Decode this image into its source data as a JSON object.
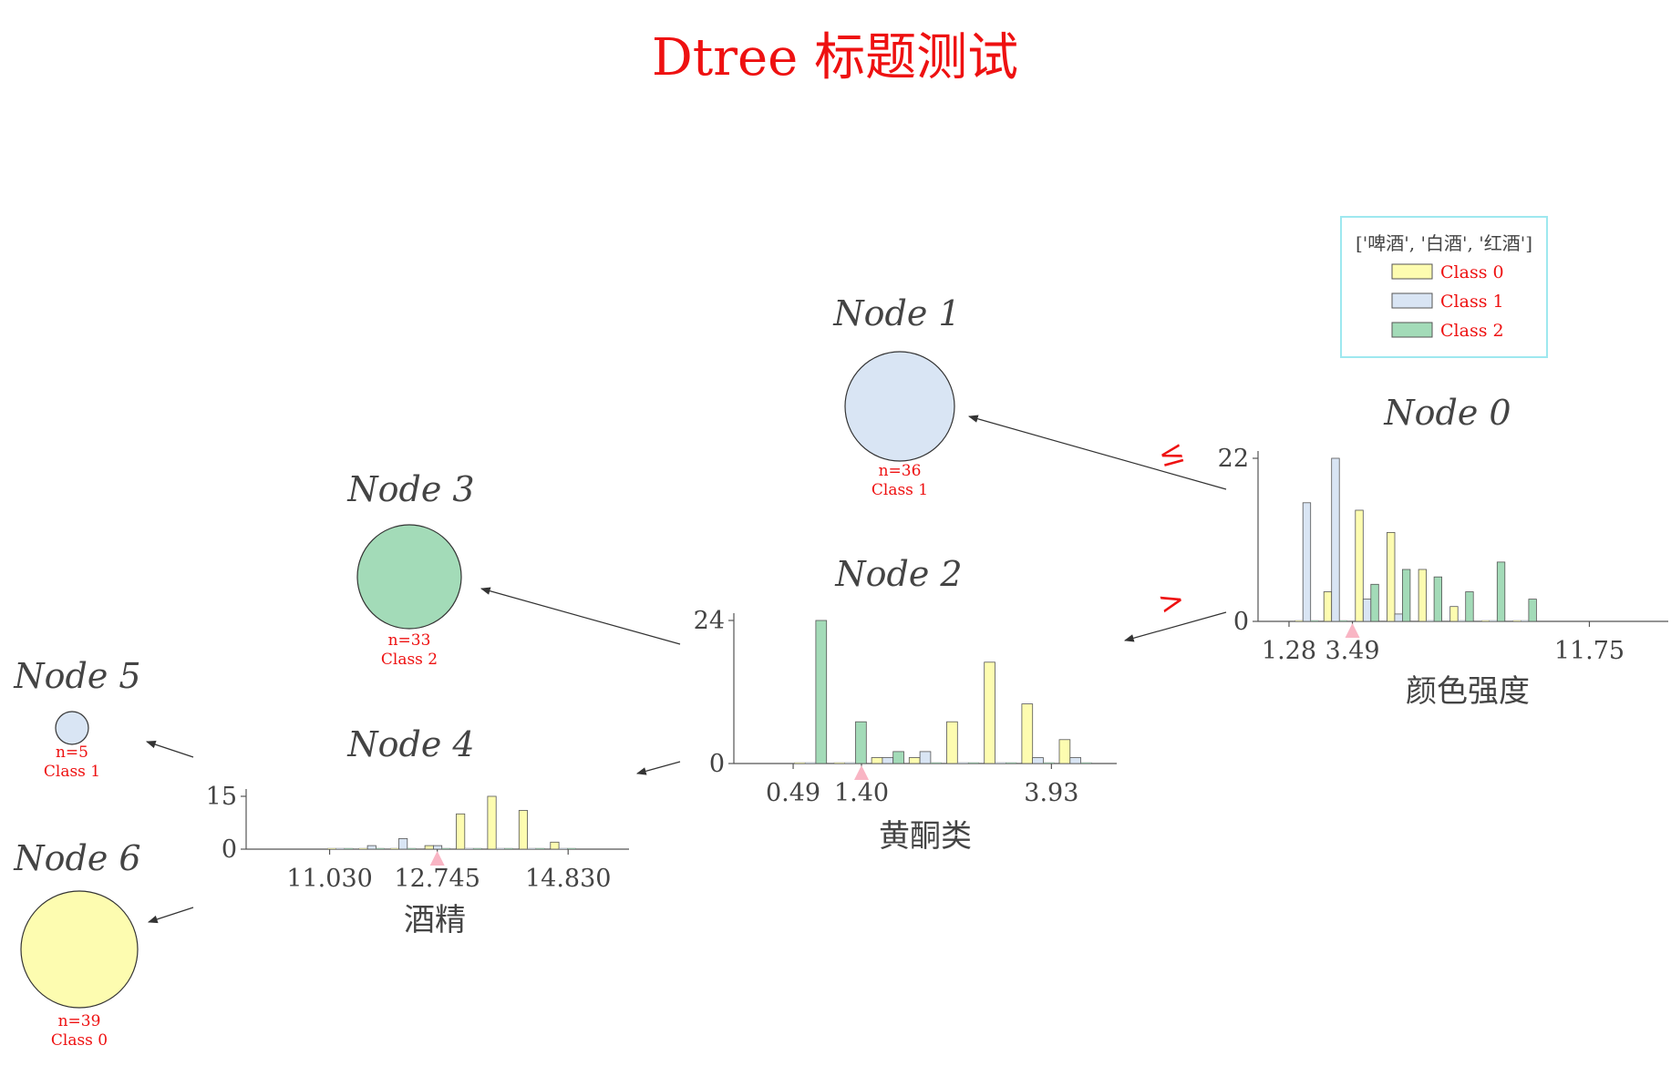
{
  "title": "Dtree 标题测试",
  "legend": {
    "title": "['啤酒', '白酒', '红酒']",
    "items": [
      {
        "label": "Class 0",
        "color": "#fdfcb0"
      },
      {
        "label": "Class 1",
        "color": "#d9e5f4"
      },
      {
        "label": "Class 2",
        "color": "#a3dbb8"
      }
    ]
  },
  "edge_labels": {
    "le": "≤",
    "gt": ">"
  },
  "chart_data": [
    {
      "type": "bar",
      "node": "Node 0",
      "feature": "颜色强度",
      "ylim": [
        0,
        22
      ],
      "y_ticks": [
        "0",
        "22"
      ],
      "x_range": [
        0.2,
        14.5
      ],
      "x_ticks": [
        "1.28",
        "3.49",
        "11.75"
      ],
      "x_tick_values": [
        1.28,
        3.49,
        11.75
      ],
      "split": 3.49,
      "bins": [
        {
          "x": 1.9,
          "values": [
            0,
            16,
            0
          ]
        },
        {
          "x": 2.9,
          "values": [
            4,
            22,
            0
          ]
        },
        {
          "x": 4.0,
          "values": [
            15,
            3,
            5
          ]
        },
        {
          "x": 5.1,
          "values": [
            12,
            1,
            7
          ]
        },
        {
          "x": 6.2,
          "values": [
            7,
            0,
            6
          ]
        },
        {
          "x": 7.3,
          "values": [
            2,
            0,
            4
          ]
        },
        {
          "x": 8.4,
          "values": [
            0,
            0,
            8
          ]
        },
        {
          "x": 9.5,
          "values": [
            0,
            0,
            3
          ]
        }
      ]
    },
    {
      "type": "bar",
      "node": "Node 2",
      "feature": "黄酮类",
      "ylim": [
        0,
        24
      ],
      "y_ticks": [
        "0",
        "24"
      ],
      "x_range": [
        -0.3,
        4.8
      ],
      "x_ticks": [
        "0.49",
        "1.40",
        "3.93"
      ],
      "x_tick_values": [
        0.49,
        1.4,
        3.93
      ],
      "split": 1.4,
      "bins": [
        {
          "x": 0.72,
          "values": [
            0,
            0,
            24
          ]
        },
        {
          "x": 1.25,
          "values": [
            0,
            0,
            7
          ]
        },
        {
          "x": 1.75,
          "values": [
            1,
            1,
            2
          ]
        },
        {
          "x": 2.25,
          "values": [
            1,
            2,
            0
          ]
        },
        {
          "x": 2.75,
          "values": [
            7,
            0,
            0
          ]
        },
        {
          "x": 3.25,
          "values": [
            17,
            0,
            0
          ]
        },
        {
          "x": 3.75,
          "values": [
            10,
            1,
            0
          ]
        },
        {
          "x": 4.25,
          "values": [
            4,
            1,
            0
          ]
        }
      ]
    },
    {
      "type": "bar",
      "node": "Node 4",
      "feature": "酒精",
      "ylim": [
        0,
        15
      ],
      "y_ticks": [
        "0",
        "15"
      ],
      "x_range": [
        9.7,
        15.8
      ],
      "x_ticks": [
        "11.030",
        "12.745",
        "14.830"
      ],
      "x_tick_values": [
        11.03,
        12.745,
        14.83
      ],
      "split": 12.745,
      "bins": [
        {
          "x": 11.2,
          "values": [
            0,
            0,
            0
          ]
        },
        {
          "x": 11.7,
          "values": [
            0,
            1,
            0
          ]
        },
        {
          "x": 12.2,
          "values": [
            0,
            3,
            0
          ]
        },
        {
          "x": 12.75,
          "values": [
            1,
            1,
            0
          ]
        },
        {
          "x": 13.25,
          "values": [
            10,
            0,
            0
          ]
        },
        {
          "x": 13.75,
          "values": [
            15,
            0,
            0
          ]
        },
        {
          "x": 14.25,
          "values": [
            11,
            0,
            0
          ]
        },
        {
          "x": 14.75,
          "values": [
            2,
            0,
            0
          ]
        }
      ]
    }
  ],
  "leaves": [
    {
      "node": "Node 1",
      "n": "n=36",
      "cls": "Class 1",
      "class_index": 1
    },
    {
      "node": "Node 3",
      "n": "n=33",
      "cls": "Class 2",
      "class_index": 2
    },
    {
      "node": "Node 5",
      "n": "n=5",
      "cls": "Class 1",
      "class_index": 1
    },
    {
      "node": "Node 6",
      "n": "n=39",
      "cls": "Class 0",
      "class_index": 0
    }
  ]
}
